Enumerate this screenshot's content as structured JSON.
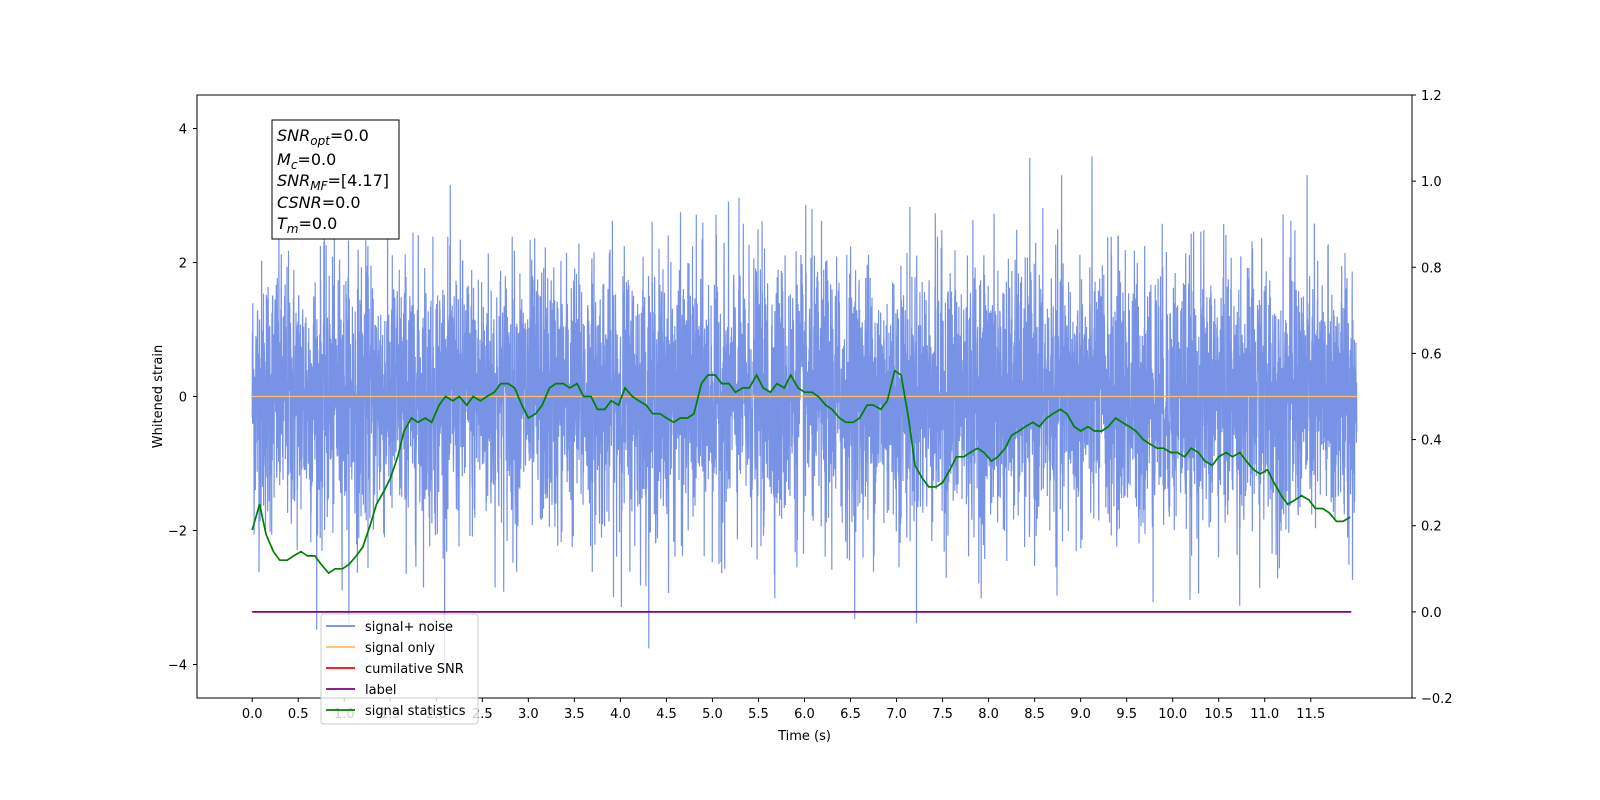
{
  "chart_data": {
    "type": "line",
    "xlabel": "Time (s)",
    "ylabel": "Whitened strain",
    "xlim": [
      -0.6,
      12.6
    ],
    "ylim": [
      -4.5,
      4.5
    ],
    "y2lim": [
      -0.2,
      1.2
    ],
    "x_ticks": [
      0.0,
      0.5,
      1.0,
      1.5,
      2.0,
      2.5,
      3.0,
      3.5,
      4.0,
      4.5,
      5.0,
      5.5,
      6.0,
      6.5,
      7.0,
      7.5,
      8.0,
      8.5,
      9.0,
      9.5,
      10.0,
      10.5,
      11.0,
      11.5
    ],
    "x_tick_labels": [
      "0.0",
      "0.5",
      "1.0",
      "1.5",
      "2.0",
      "2.5",
      "3.0",
      "3.5",
      "4.0",
      "4.5",
      "5.0",
      "5.5",
      "6.0",
      "6.5",
      "7.0",
      "7.5",
      "8.0",
      "8.5",
      "9.0",
      "9.5",
      "10.0",
      "10.5",
      "11.0",
      "11.5"
    ],
    "y_ticks": [
      -4,
      -2,
      0,
      2,
      4
    ],
    "y_tick_labels": [
      "−4",
      "−2",
      "0",
      "2",
      "4"
    ],
    "y2_ticks": [
      -0.2,
      0.0,
      0.2,
      0.4,
      0.6,
      0.8,
      1.0,
      1.2
    ],
    "y2_tick_labels": [
      "−0.2",
      "0.0",
      "0.2",
      "0.4",
      "0.6",
      "0.8",
      "1.0",
      "1.2"
    ],
    "grid": false,
    "legend_position": "lower-left",
    "annotation": [
      {
        "main": "SNR",
        "sub": "opt",
        "rest": "=0.0"
      },
      {
        "main": "M",
        "sub": "c",
        "rest": "=0.0"
      },
      {
        "main": "SNR",
        "sub": "MF",
        "rest": "=[4.17]"
      },
      {
        "main": "CSNR",
        "sub": "",
        "rest": "=0.0"
      },
      {
        "main": "T",
        "sub": "m",
        "rest": "=0.0"
      }
    ],
    "noise": {
      "x_range": [
        0.0,
        12.0
      ],
      "mean": 0.0,
      "std": 1.0,
      "approx_extremes": {
        "min": -4.05,
        "max": 4.12
      }
    },
    "series": [
      {
        "name": "signal+ noise",
        "axis": "left",
        "color": "#6c8ae4",
        "kind": "noise"
      },
      {
        "name": "signal only",
        "axis": "left",
        "color": "#ffbf5f",
        "kind": "line",
        "x": [
          0.0,
          12.0
        ],
        "y": [
          0.0,
          0.0
        ]
      },
      {
        "name": "cumilative SNR",
        "axis": "right",
        "color": "#ff0000",
        "kind": "legend-only"
      },
      {
        "name": "label",
        "axis": "right",
        "color": "#800080",
        "kind": "line",
        "x": [
          0.0,
          11.94
        ],
        "y": [
          0.0,
          0.0
        ]
      },
      {
        "name": "signal statistics",
        "axis": "right",
        "color": "#007f00",
        "kind": "line",
        "x": [
          0.0,
          0.08,
          0.15,
          0.23,
          0.3,
          0.38,
          0.45,
          0.53,
          0.6,
          0.68,
          0.75,
          0.83,
          0.9,
          0.98,
          1.05,
          1.13,
          1.2,
          1.28,
          1.35,
          1.43,
          1.5,
          1.58,
          1.65,
          1.73,
          1.8,
          1.88,
          1.95,
          2.03,
          2.1,
          2.18,
          2.25,
          2.33,
          2.4,
          2.48,
          2.55,
          2.63,
          2.7,
          2.78,
          2.85,
          2.93,
          3.0,
          3.08,
          3.15,
          3.23,
          3.3,
          3.38,
          3.45,
          3.53,
          3.6,
          3.68,
          3.75,
          3.83,
          3.9,
          3.98,
          4.05,
          4.13,
          4.2,
          4.28,
          4.35,
          4.43,
          4.5,
          4.58,
          4.65,
          4.73,
          4.8,
          4.88,
          4.95,
          5.03,
          5.1,
          5.18,
          5.25,
          5.33,
          5.4,
          5.48,
          5.55,
          5.63,
          5.7,
          5.78,
          5.85,
          5.93,
          6.0,
          6.08,
          6.15,
          6.23,
          6.3,
          6.38,
          6.45,
          6.53,
          6.6,
          6.68,
          6.75,
          6.83,
          6.9,
          6.98,
          7.05,
          7.13,
          7.2,
          7.28,
          7.35,
          7.43,
          7.5,
          7.58,
          7.65,
          7.73,
          7.8,
          7.88,
          7.95,
          8.03,
          8.1,
          8.18,
          8.25,
          8.33,
          8.4,
          8.48,
          8.55,
          8.63,
          8.7,
          8.78,
          8.85,
          8.93,
          9.0,
          9.08,
          9.15,
          9.23,
          9.3,
          9.38,
          9.45,
          9.53,
          9.6,
          9.68,
          9.75,
          9.83,
          9.9,
          9.98,
          10.05,
          10.13,
          10.2,
          10.28,
          10.35,
          10.43,
          10.5,
          10.58,
          10.65,
          10.73,
          10.8,
          10.88,
          10.95,
          11.03,
          11.1,
          11.18,
          11.25,
          11.33,
          11.4,
          11.48,
          11.55,
          11.63,
          11.7,
          11.78,
          11.85,
          11.93
        ],
        "y": [
          0.19,
          0.25,
          0.18,
          0.14,
          0.12,
          0.12,
          0.13,
          0.14,
          0.13,
          0.13,
          0.11,
          0.09,
          0.1,
          0.1,
          0.11,
          0.13,
          0.15,
          0.2,
          0.25,
          0.28,
          0.31,
          0.36,
          0.42,
          0.45,
          0.44,
          0.45,
          0.44,
          0.48,
          0.5,
          0.49,
          0.5,
          0.48,
          0.5,
          0.49,
          0.5,
          0.51,
          0.53,
          0.53,
          0.52,
          0.48,
          0.45,
          0.46,
          0.48,
          0.52,
          0.53,
          0.53,
          0.52,
          0.53,
          0.5,
          0.5,
          0.47,
          0.47,
          0.49,
          0.48,
          0.52,
          0.5,
          0.49,
          0.48,
          0.46,
          0.46,
          0.45,
          0.44,
          0.45,
          0.45,
          0.46,
          0.53,
          0.55,
          0.55,
          0.53,
          0.53,
          0.51,
          0.52,
          0.52,
          0.55,
          0.52,
          0.51,
          0.53,
          0.52,
          0.55,
          0.52,
          0.51,
          0.51,
          0.5,
          0.48,
          0.47,
          0.45,
          0.44,
          0.44,
          0.45,
          0.48,
          0.48,
          0.47,
          0.49,
          0.56,
          0.55,
          0.45,
          0.34,
          0.31,
          0.29,
          0.29,
          0.3,
          0.33,
          0.36,
          0.36,
          0.37,
          0.38,
          0.37,
          0.35,
          0.36,
          0.38,
          0.41,
          0.42,
          0.43,
          0.44,
          0.43,
          0.45,
          0.46,
          0.47,
          0.46,
          0.43,
          0.42,
          0.43,
          0.42,
          0.42,
          0.43,
          0.45,
          0.44,
          0.43,
          0.42,
          0.4,
          0.39,
          0.38,
          0.38,
          0.37,
          0.37,
          0.36,
          0.38,
          0.37,
          0.35,
          0.34,
          0.36,
          0.37,
          0.36,
          0.37,
          0.35,
          0.33,
          0.32,
          0.33,
          0.3,
          0.27,
          0.25,
          0.26,
          0.27,
          0.26,
          0.24,
          0.24,
          0.23,
          0.21,
          0.21,
          0.22
        ]
      }
    ]
  }
}
